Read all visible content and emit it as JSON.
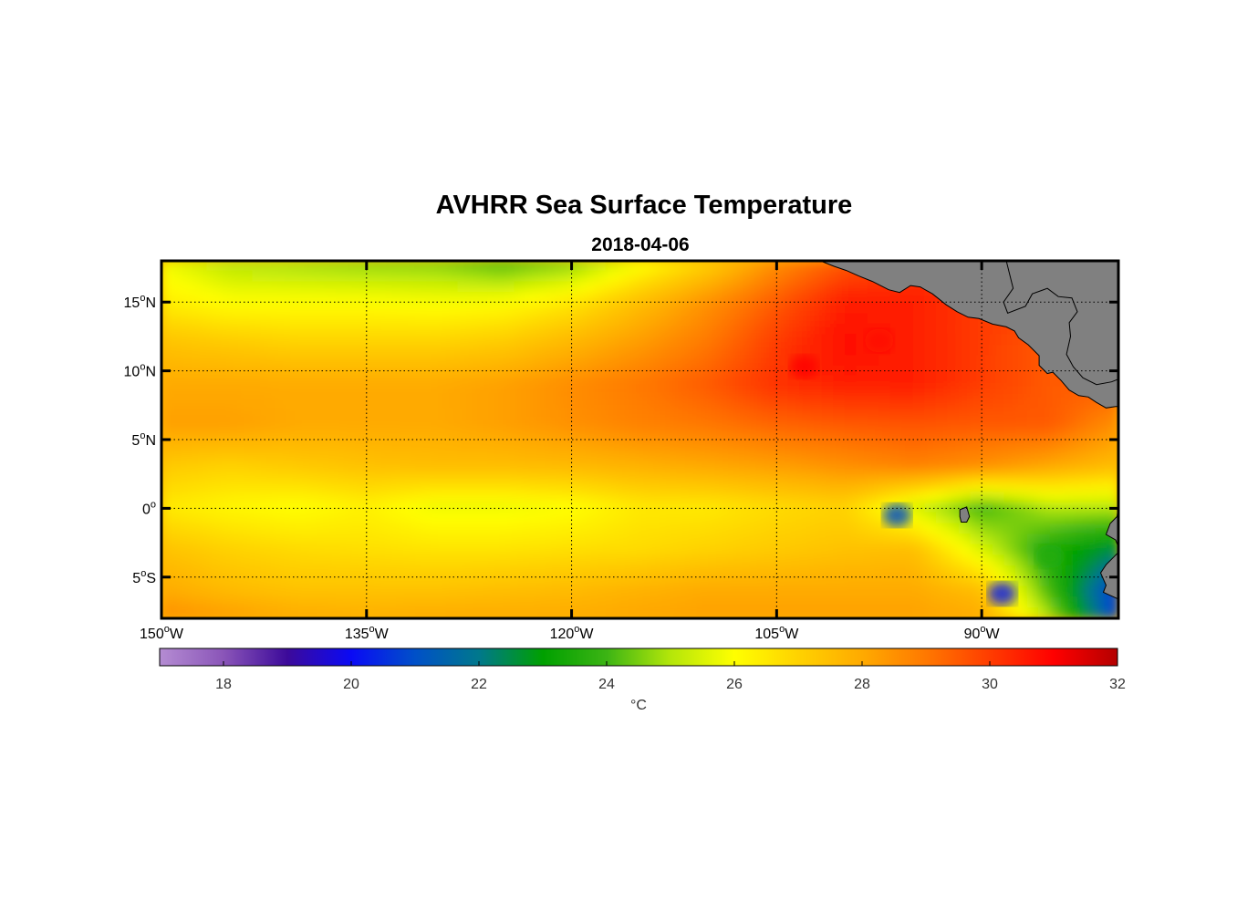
{
  "chart_data": {
    "type": "heatmap",
    "title": "AVHRR Sea Surface Temperature",
    "subtitle": "2018-04-06",
    "x_axis": {
      "range": [
        -150,
        -80
      ],
      "ticks": [
        {
          "value": -150,
          "deg": "150",
          "hemi": "W"
        },
        {
          "value": -135,
          "deg": "135",
          "hemi": "W"
        },
        {
          "value": -120,
          "deg": "120",
          "hemi": "W"
        },
        {
          "value": -105,
          "deg": "105",
          "hemi": "W"
        },
        {
          "value": -90,
          "deg": "90",
          "hemi": "W"
        }
      ]
    },
    "y_axis": {
      "range": [
        -8,
        18
      ],
      "ticks": [
        {
          "value": 15,
          "deg": "15",
          "hemi": "N"
        },
        {
          "value": 10,
          "deg": "10",
          "hemi": "N"
        },
        {
          "value": 5,
          "deg": "5",
          "hemi": "N"
        },
        {
          "value": 0,
          "deg": "0",
          "hemi": ""
        },
        {
          "value": -5,
          "deg": "5",
          "hemi": "S"
        }
      ]
    },
    "grid": true,
    "degree_symbol": "o",
    "colorbar": {
      "range": [
        17,
        32
      ],
      "ticks": [
        "18",
        "20",
        "22",
        "24",
        "26",
        "28",
        "30",
        "32"
      ],
      "label": "°C",
      "stops": [
        {
          "v": 17,
          "c": "#b48cd2"
        },
        {
          "v": 18,
          "c": "#8a55b8"
        },
        {
          "v": 19,
          "c": "#3c0a9a"
        },
        {
          "v": 20,
          "c": "#0a0af5"
        },
        {
          "v": 21,
          "c": "#0050c8"
        },
        {
          "v": 22,
          "c": "#00788c"
        },
        {
          "v": 23,
          "c": "#00a000"
        },
        {
          "v": 24,
          "c": "#3cb414"
        },
        {
          "v": 25,
          "c": "#b4e60a"
        },
        {
          "v": 26,
          "c": "#ffff00"
        },
        {
          "v": 27,
          "c": "#ffd200"
        },
        {
          "v": 28,
          "c": "#ffaa00"
        },
        {
          "v": 29,
          "c": "#ff7800"
        },
        {
          "v": 30,
          "c": "#ff3c00"
        },
        {
          "v": 31,
          "c": "#ff0000"
        },
        {
          "v": 32,
          "c": "#b40000"
        }
      ]
    },
    "sst_field": {
      "lon": [
        -150,
        -145,
        -140,
        -135,
        -130,
        -125,
        -120,
        -115,
        -110,
        -105,
        -100,
        -95,
        -90,
        -85,
        -80
      ],
      "lat": [
        18,
        15,
        12,
        9,
        6,
        3,
        0,
        -3,
        -6,
        -8
      ],
      "values": [
        [
          25.8,
          25.0,
          24.8,
          24.6,
          24.5,
          24.0,
          24.5,
          25.8,
          27.0,
          28.5,
          29.5,
          30.0,
          30.0,
          30.0,
          28.5
        ],
        [
          26.4,
          26.0,
          26.0,
          26.0,
          25.9,
          26.0,
          26.5,
          27.5,
          28.5,
          29.5,
          30.5,
          30.5,
          30.0,
          30.0,
          29.0
        ],
        [
          27.4,
          27.2,
          27.0,
          27.0,
          27.0,
          27.2,
          27.7,
          28.3,
          29.0,
          30.0,
          30.8,
          30.5,
          30.0,
          29.5,
          29.0
        ],
        [
          28.0,
          28.0,
          28.0,
          28.0,
          28.0,
          28.2,
          28.6,
          29.0,
          29.5,
          30.2,
          30.5,
          30.5,
          30.0,
          29.5,
          29.5
        ],
        [
          28.2,
          28.2,
          28.0,
          28.0,
          28.0,
          28.2,
          28.5,
          28.8,
          29.0,
          29.3,
          29.5,
          29.6,
          29.5,
          29.5,
          28.5
        ],
        [
          27.2,
          27.0,
          27.2,
          27.4,
          27.5,
          27.5,
          27.6,
          27.8,
          28.0,
          28.2,
          28.5,
          28.8,
          28.5,
          28.0,
          27.5
        ],
        [
          26.5,
          26.2,
          26.0,
          26.3,
          25.8,
          25.8,
          26.0,
          26.5,
          26.5,
          26.8,
          27.0,
          25.5,
          24.0,
          25.0,
          25.0
        ],
        [
          27.4,
          27.0,
          26.8,
          26.7,
          26.6,
          26.6,
          26.7,
          26.8,
          27.0,
          27.2,
          27.4,
          27.5,
          25.5,
          23.5,
          22.5
        ],
        [
          28.0,
          27.6,
          27.4,
          27.4,
          27.4,
          27.5,
          27.6,
          27.8,
          28.0,
          28.0,
          28.0,
          28.0,
          27.5,
          24.0,
          20.5
        ],
        [
          28.6,
          28.3,
          28.0,
          27.9,
          28.0,
          28.0,
          28.0,
          28.1,
          28.2,
          28.2,
          28.2,
          28.2,
          28.0,
          25.0,
          20.5
        ]
      ],
      "cold_spots": [
        {
          "lon": -88.5,
          "lat": -6.2,
          "value": 20.3
        },
        {
          "lon": -96.2,
          "lat": -0.5,
          "value": 21.0
        },
        {
          "lon": -85.0,
          "lat": -3.5,
          "value": 23.6
        }
      ],
      "warm_spots": [
        {
          "lon": -103.0,
          "lat": 10.3,
          "value": 31.0
        },
        {
          "lon": -97.5,
          "lat": 12.2,
          "value": 30.8
        }
      ]
    },
    "land_color": "#808080",
    "land": [
      {
        "name": "mexico-central-america",
        "lon_lat": [
          [
            -101.8,
            18
          ],
          [
            -100.8,
            17.6
          ],
          [
            -99.9,
            17.3
          ],
          [
            -99,
            16.9
          ],
          [
            -98,
            16.5
          ],
          [
            -96.8,
            15.9
          ],
          [
            -96,
            15.7
          ],
          [
            -95.2,
            16.2
          ],
          [
            -94.5,
            16.1
          ],
          [
            -93.6,
            15.6
          ],
          [
            -92.6,
            14.8
          ],
          [
            -91.8,
            14.3
          ],
          [
            -91,
            13.9
          ],
          [
            -90.2,
            13.8
          ],
          [
            -89.2,
            13.4
          ],
          [
            -88.2,
            13.2
          ],
          [
            -87.6,
            12.9
          ],
          [
            -87.3,
            12.4
          ],
          [
            -86.6,
            11.9
          ],
          [
            -85.8,
            11.1
          ],
          [
            -85.8,
            10.4
          ],
          [
            -85.2,
            9.8
          ],
          [
            -84.8,
            9.9
          ],
          [
            -84.2,
            9.3
          ],
          [
            -83.6,
            8.6
          ],
          [
            -82.9,
            8.2
          ],
          [
            -82.2,
            8.1
          ],
          [
            -81.6,
            7.7
          ],
          [
            -80.9,
            7.3
          ],
          [
            -80.2,
            7.4
          ],
          [
            -80,
            7.4
          ],
          [
            -80,
            18
          ]
        ]
      },
      {
        "name": "gulf-of-fonseca-gap",
        "lon_lat": [
          [
            -88.2,
            18
          ],
          [
            -87.7,
            16
          ],
          [
            -88.4,
            15
          ],
          [
            -88.1,
            14.2
          ],
          [
            -86.8,
            14.7
          ],
          [
            -86.3,
            15.6
          ],
          [
            -85.2,
            16
          ],
          [
            -84.4,
            15.4
          ],
          [
            -83.4,
            15.3
          ],
          [
            -83,
            14.3
          ],
          [
            -83.6,
            13.5
          ],
          [
            -83.5,
            12.5
          ],
          [
            -83.8,
            11.2
          ],
          [
            -83.3,
            10.3
          ],
          [
            -82.6,
            9.5
          ],
          [
            -81.6,
            9
          ],
          [
            -80.5,
            9.2
          ],
          [
            -80,
            9.4
          ],
          [
            -80,
            18
          ],
          [
            -84.5,
            18
          ],
          [
            -86.5,
            18
          ]
        ]
      },
      {
        "name": "south-america-coast",
        "lon_lat": [
          [
            -80,
            0.2
          ],
          [
            -80.1,
            -0.6
          ],
          [
            -80.6,
            -1.1
          ],
          [
            -80.9,
            -1.9
          ],
          [
            -80.2,
            -2.3
          ],
          [
            -79.9,
            -3.1
          ],
          [
            -80.3,
            -3.5
          ],
          [
            -80.9,
            -4.1
          ],
          [
            -81.3,
            -4.7
          ],
          [
            -80.9,
            -5.6
          ],
          [
            -81.1,
            -6.1
          ],
          [
            -80,
            -6.6
          ]
        ]
      },
      {
        "name": "galapagos-isabela",
        "lon_lat": [
          [
            -91.6,
            -0.1
          ],
          [
            -91.1,
            0.1
          ],
          [
            -90.9,
            -0.6
          ],
          [
            -91.1,
            -1.0
          ],
          [
            -91.5,
            -1.0
          ],
          [
            -91.6,
            -0.6
          ]
        ]
      }
    ]
  }
}
